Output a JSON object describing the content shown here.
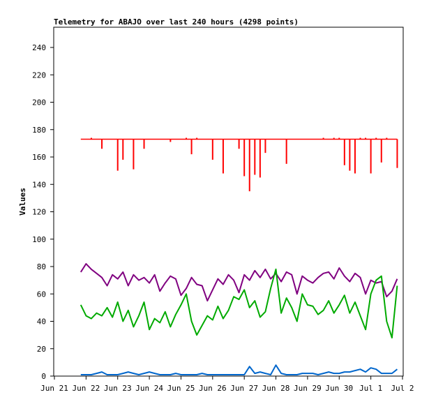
{
  "chart_data": {
    "type": "line",
    "title": "Telemetry for ABAJO over last 240 hours (4298 points)",
    "xlabel": "",
    "ylabel": "Values",
    "ylim": [
      0,
      250
    ],
    "yticks": [
      0,
      20,
      40,
      60,
      80,
      100,
      120,
      140,
      160,
      180,
      200,
      220,
      240
    ],
    "xlim": [
      "Jun 21",
      "Jul 2"
    ],
    "xticks": [
      "Jun 21",
      "Jun 22",
      "Jun 23",
      "Jun 24",
      "Jun 25",
      "Jun 26",
      "Jun 27",
      "Jun 28",
      "Jun 29",
      "Jun 30",
      "Jul 1",
      "Jul 2"
    ],
    "grid": false,
    "legend": "none",
    "series": [
      {
        "color": "#ff0000",
        "style": "drop-bars",
        "x": [
          "Jun 21 20:00",
          "Jun 22 00:00",
          "Jun 22 04:00",
          "Jun 22 08:00",
          "Jun 22 12:00",
          "Jun 22 16:00",
          "Jun 22 20:00",
          "Jun 23 00:00",
          "Jun 23 04:00",
          "Jun 23 08:00",
          "Jun 23 12:00",
          "Jun 23 16:00",
          "Jun 23 20:00",
          "Jun 24 00:00",
          "Jun 24 04:00",
          "Jun 24 08:00",
          "Jun 24 12:00",
          "Jun 24 16:00",
          "Jun 24 20:00",
          "Jun 25 00:00",
          "Jun 25 04:00",
          "Jun 25 08:00",
          "Jun 25 12:00",
          "Jun 25 16:00",
          "Jun 25 20:00",
          "Jun 26 00:00",
          "Jun 26 04:00",
          "Jun 26 08:00",
          "Jun 26 12:00",
          "Jun 26 16:00",
          "Jun 26 20:00",
          "Jun 27 00:00",
          "Jun 27 04:00",
          "Jun 27 08:00",
          "Jun 27 12:00",
          "Jun 27 16:00",
          "Jun 27 20:00",
          "Jun 28 00:00",
          "Jun 28 04:00",
          "Jun 28 08:00",
          "Jun 28 12:00",
          "Jun 28 16:00",
          "Jun 28 20:00",
          "Jun 29 00:00",
          "Jun 29 04:00",
          "Jun 29 08:00",
          "Jun 29 12:00",
          "Jun 29 16:00",
          "Jun 29 20:00",
          "Jun 30 00:00",
          "Jun 30 04:00",
          "Jun 30 08:00",
          "Jun 30 12:00",
          "Jun 30 16:00",
          "Jun 30 20:00",
          "Jul 1 00:00",
          "Jul 1 04:00",
          "Jul 1 08:00",
          "Jul 1 12:00",
          "Jul 1 16:00",
          "Jul 1 20:00"
        ],
        "values": [
          173,
          173,
          174,
          173,
          166,
          173,
          173,
          150,
          158,
          173,
          151,
          173,
          166,
          173,
          173,
          173,
          173,
          171,
          173,
          173,
          174,
          162,
          174,
          173,
          173,
          158,
          173,
          148,
          173,
          173,
          166,
          146,
          135,
          147,
          145,
          163,
          173,
          173,
          173,
          155,
          173,
          173,
          173,
          173,
          173,
          173,
          174,
          173,
          174,
          174,
          154,
          150,
          148,
          174,
          174,
          148,
          174,
          156,
          174,
          173,
          152
        ]
      },
      {
        "color": "#800080",
        "style": "line",
        "x": [
          "Jun 21 20:00",
          "Jun 22 00:00",
          "Jun 22 04:00",
          "Jun 22 08:00",
          "Jun 22 12:00",
          "Jun 22 16:00",
          "Jun 22 20:00",
          "Jun 23 00:00",
          "Jun 23 04:00",
          "Jun 23 08:00",
          "Jun 23 12:00",
          "Jun 23 16:00",
          "Jun 23 20:00",
          "Jun 24 00:00",
          "Jun 24 04:00",
          "Jun 24 08:00",
          "Jun 24 12:00",
          "Jun 24 16:00",
          "Jun 24 20:00",
          "Jun 25 00:00",
          "Jun 25 04:00",
          "Jun 25 08:00",
          "Jun 25 12:00",
          "Jun 25 16:00",
          "Jun 25 20:00",
          "Jun 26 00:00",
          "Jun 26 04:00",
          "Jun 26 08:00",
          "Jun 26 12:00",
          "Jun 26 16:00",
          "Jun 26 20:00",
          "Jun 27 00:00",
          "Jun 27 04:00",
          "Jun 27 08:00",
          "Jun 27 12:00",
          "Jun 27 16:00",
          "Jun 27 20:00",
          "Jun 28 00:00",
          "Jun 28 04:00",
          "Jun 28 08:00",
          "Jun 28 12:00",
          "Jun 28 16:00",
          "Jun 28 20:00",
          "Jun 29 00:00",
          "Jun 29 04:00",
          "Jun 29 08:00",
          "Jun 29 12:00",
          "Jun 29 16:00",
          "Jun 29 20:00",
          "Jun 30 00:00",
          "Jun 30 04:00",
          "Jun 30 08:00",
          "Jun 30 12:00",
          "Jun 30 16:00",
          "Jun 30 20:00",
          "Jul 1 00:00",
          "Jul 1 04:00",
          "Jul 1 08:00",
          "Jul 1 12:00",
          "Jul 1 16:00",
          "Jul 1 20:00"
        ],
        "values": [
          76,
          82,
          78,
          75,
          72,
          66,
          74,
          71,
          76,
          66,
          74,
          70,
          72,
          68,
          74,
          62,
          68,
          73,
          71,
          59,
          64,
          72,
          67,
          66,
          55,
          63,
          71,
          67,
          74,
          70,
          61,
          74,
          70,
          77,
          72,
          78,
          71,
          75,
          69,
          76,
          74,
          60,
          73,
          70,
          68,
          72,
          75,
          76,
          71,
          79,
          73,
          69,
          75,
          72,
          60,
          70,
          68,
          69,
          58,
          62,
          71
        ]
      },
      {
        "color": "#00aa00",
        "style": "line",
        "x": [
          "Jun 21 20:00",
          "Jun 22 00:00",
          "Jun 22 04:00",
          "Jun 22 08:00",
          "Jun 22 12:00",
          "Jun 22 16:00",
          "Jun 22 20:00",
          "Jun 23 00:00",
          "Jun 23 04:00",
          "Jun 23 08:00",
          "Jun 23 12:00",
          "Jun 23 16:00",
          "Jun 23 20:00",
          "Jun 24 00:00",
          "Jun 24 04:00",
          "Jun 24 08:00",
          "Jun 24 12:00",
          "Jun 24 16:00",
          "Jun 24 20:00",
          "Jun 25 00:00",
          "Jun 25 04:00",
          "Jun 25 08:00",
          "Jun 25 12:00",
          "Jun 25 16:00",
          "Jun 25 20:00",
          "Jun 26 00:00",
          "Jun 26 04:00",
          "Jun 26 08:00",
          "Jun 26 12:00",
          "Jun 26 16:00",
          "Jun 26 20:00",
          "Jun 27 00:00",
          "Jun 27 04:00",
          "Jun 27 08:00",
          "Jun 27 12:00",
          "Jun 27 16:00",
          "Jun 27 20:00",
          "Jun 28 00:00",
          "Jun 28 04:00",
          "Jun 28 08:00",
          "Jun 28 12:00",
          "Jun 28 16:00",
          "Jun 28 20:00",
          "Jun 29 00:00",
          "Jun 29 04:00",
          "Jun 29 08:00",
          "Jun 29 12:00",
          "Jun 29 16:00",
          "Jun 29 20:00",
          "Jun 30 00:00",
          "Jun 30 04:00",
          "Jun 30 08:00",
          "Jun 30 12:00",
          "Jun 30 16:00",
          "Jun 30 20:00",
          "Jul 1 00:00",
          "Jul 1 04:00",
          "Jul 1 08:00",
          "Jul 1 12:00",
          "Jul 1 16:00",
          "Jul 1 20:00"
        ],
        "values": [
          52,
          44,
          42,
          46,
          44,
          50,
          43,
          54,
          40,
          48,
          36,
          44,
          54,
          34,
          42,
          39,
          47,
          36,
          45,
          52,
          60,
          40,
          30,
          37,
          44,
          41,
          51,
          42,
          48,
          58,
          56,
          63,
          50,
          55,
          43,
          47,
          64,
          78,
          46,
          57,
          50,
          40,
          60,
          52,
          51,
          45,
          48,
          55,
          46,
          52,
          59,
          46,
          54,
          44,
          34,
          60,
          70,
          73,
          40,
          28,
          66
        ]
      },
      {
        "color": "#0066cc",
        "style": "line",
        "x": [
          "Jun 21 20:00",
          "Jun 22 00:00",
          "Jun 22 04:00",
          "Jun 22 08:00",
          "Jun 22 12:00",
          "Jun 22 16:00",
          "Jun 22 20:00",
          "Jun 23 00:00",
          "Jun 23 04:00",
          "Jun 23 08:00",
          "Jun 23 12:00",
          "Jun 23 16:00",
          "Jun 23 20:00",
          "Jun 24 00:00",
          "Jun 24 04:00",
          "Jun 24 08:00",
          "Jun 24 12:00",
          "Jun 24 16:00",
          "Jun 24 20:00",
          "Jun 25 00:00",
          "Jun 25 04:00",
          "Jun 25 08:00",
          "Jun 25 12:00",
          "Jun 25 16:00",
          "Jun 25 20:00",
          "Jun 26 00:00",
          "Jun 26 04:00",
          "Jun 26 08:00",
          "Jun 26 12:00",
          "Jun 26 16:00",
          "Jun 26 20:00",
          "Jun 27 00:00",
          "Jun 27 04:00",
          "Jun 27 08:00",
          "Jun 27 12:00",
          "Jun 27 16:00",
          "Jun 27 20:00",
          "Jun 28 00:00",
          "Jun 28 04:00",
          "Jun 28 08:00",
          "Jun 28 12:00",
          "Jun 28 16:00",
          "Jun 28 20:00",
          "Jun 29 00:00",
          "Jun 29 04:00",
          "Jun 29 08:00",
          "Jun 29 12:00",
          "Jun 29 16:00",
          "Jun 29 20:00",
          "Jun 30 00:00",
          "Jun 30 04:00",
          "Jun 30 08:00",
          "Jun 30 12:00",
          "Jun 30 16:00",
          "Jun 30 20:00",
          "Jul 1 00:00",
          "Jul 1 04:00",
          "Jul 1 08:00",
          "Jul 1 12:00",
          "Jul 1 16:00",
          "Jul 1 20:00"
        ],
        "values": [
          1,
          1,
          1,
          2,
          3,
          1,
          1,
          1,
          2,
          3,
          2,
          1,
          2,
          3,
          2,
          1,
          1,
          1,
          2,
          1,
          1,
          1,
          1,
          2,
          1,
          1,
          1,
          1,
          1,
          1,
          1,
          1,
          7,
          2,
          3,
          2,
          1,
          8,
          2,
          1,
          1,
          1,
          2,
          2,
          2,
          1,
          2,
          3,
          2,
          2,
          3,
          3,
          4,
          5,
          3,
          6,
          5,
          2,
          2,
          2,
          5
        ]
      }
    ]
  }
}
